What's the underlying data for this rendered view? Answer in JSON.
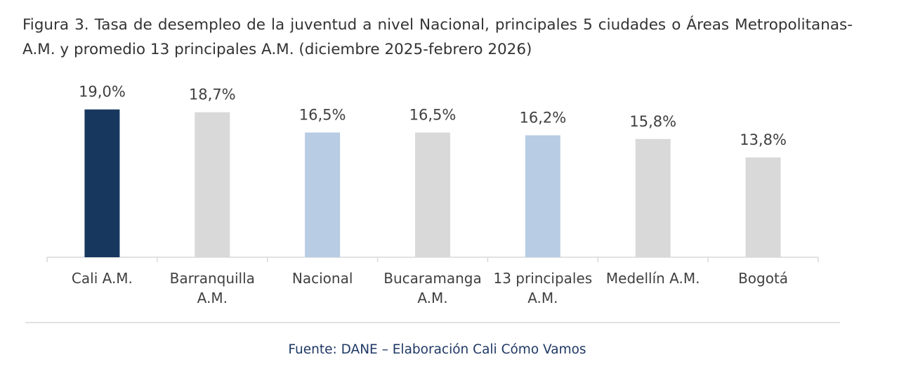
{
  "chart_data": {
    "type": "bar",
    "title": "Figura 3. Tasa de desempleo de la juventud a nivel Nacional, principales 5 ciudades o Áreas Metropolitanas-A.M. y promedio 13 principales A.M. (diciembre 2025-febrero 2026)",
    "categories": [
      "Cali A.M.",
      "Barranquilla A.M.",
      "Nacional",
      "Bucaramanga A.M.",
      "13 principales A.M.",
      "Medellín A.M.",
      "Bogotá"
    ],
    "values": [
      19.0,
      18.7,
      16.5,
      16.5,
      16.2,
      15.8,
      13.8
    ],
    "value_labels": [
      "19,0%",
      "18,7%",
      "16,5%",
      "16,5%",
      "16,2%",
      "15,8%",
      "13,8%"
    ],
    "colors": [
      "#17375e",
      "#d9d9d9",
      "#b8cce4",
      "#d9d9d9",
      "#b8cce4",
      "#d9d9d9",
      "#d9d9d9"
    ],
    "ylim": [
      3,
      20.5
    ],
    "source": "Fuente: DANE – Elaboración Cali Cómo Vamos"
  }
}
